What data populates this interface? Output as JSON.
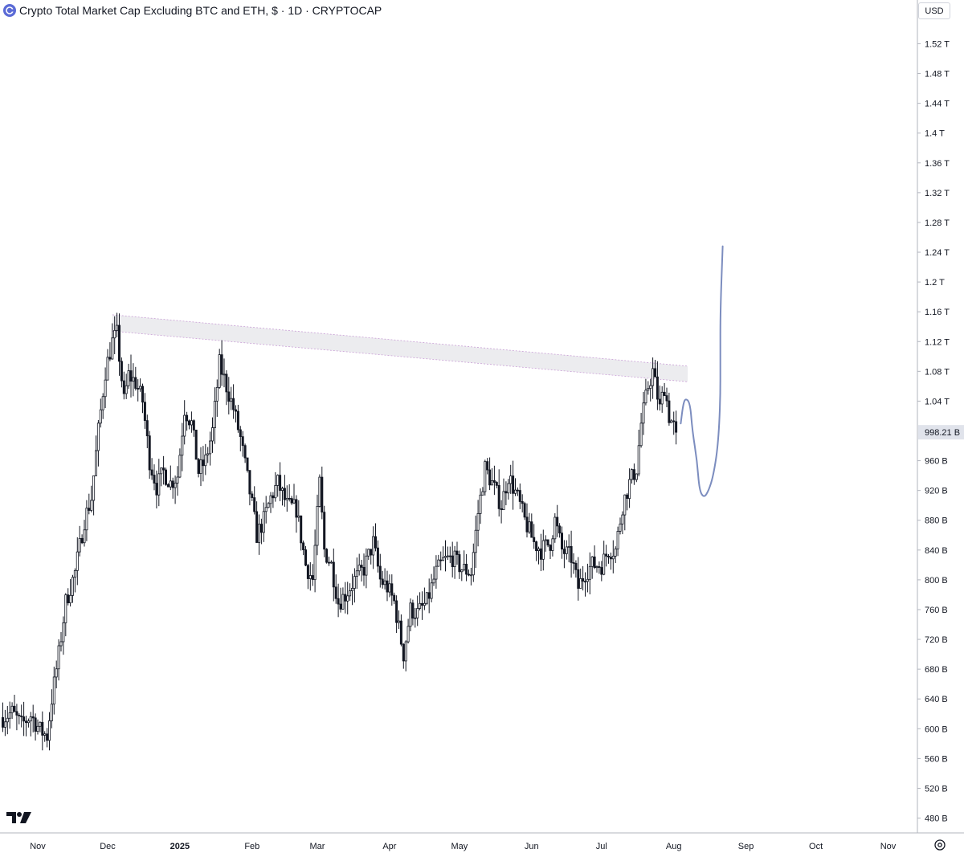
{
  "header": {
    "title": "Crypto Total Market Cap Excluding BTC and ETH, $ · 1D · CRYPTOCAP"
  },
  "currency_button": "USD",
  "icons": {
    "symbol": "crypto-symbol-icon",
    "logo": "tradingview-logo-icon",
    "settings": "settings-icon"
  },
  "colors": {
    "candle": "#131722",
    "resistance_fill": "#ececef",
    "resistance_edge": "#c9a0d6",
    "projection": "#7c8dbf",
    "price_label_bg": "#e0e3eb",
    "symbol_icon": "#5b6bd6"
  },
  "chart_data": {
    "type": "candlestick",
    "title": "Crypto Total Market Cap Excluding BTC and ETH, $ · 1D · CRYPTOCAP",
    "ylim": [
      470,
      1560
    ],
    "y_ticks": [
      {
        "label": "1.52 T",
        "value": 1520
      },
      {
        "label": "1.48 T",
        "value": 1480
      },
      {
        "label": "1.44 T",
        "value": 1440
      },
      {
        "label": "1.4 T",
        "value": 1400
      },
      {
        "label": "1.36 T",
        "value": 1360
      },
      {
        "label": "1.32 T",
        "value": 1320
      },
      {
        "label": "1.28 T",
        "value": 1280
      },
      {
        "label": "1.24 T",
        "value": 1240
      },
      {
        "label": "1.2 T",
        "value": 1200
      },
      {
        "label": "1.16 T",
        "value": 1160
      },
      {
        "label": "1.12 T",
        "value": 1120
      },
      {
        "label": "1.08 T",
        "value": 1080
      },
      {
        "label": "1.04 T",
        "value": 1040
      },
      {
        "label": "960 B",
        "value": 960
      },
      {
        "label": "920 B",
        "value": 920
      },
      {
        "label": "880 B",
        "value": 880
      },
      {
        "label": "840 B",
        "value": 840
      },
      {
        "label": "800 B",
        "value": 800
      },
      {
        "label": "760 B",
        "value": 760
      },
      {
        "label": "720 B",
        "value": 720
      },
      {
        "label": "680 B",
        "value": 680
      },
      {
        "label": "640 B",
        "value": 640
      },
      {
        "label": "600 B",
        "value": 600
      },
      {
        "label": "560 B",
        "value": 560
      },
      {
        "label": "520 B",
        "value": 520
      },
      {
        "label": "480 B",
        "value": 480
      }
    ],
    "x_ticks": [
      {
        "label": "Nov",
        "date": "2024-11-01"
      },
      {
        "label": "Dec",
        "date": "2024-12-01"
      },
      {
        "label": "2025",
        "date": "2025-01-01",
        "bold": true
      },
      {
        "label": "Feb",
        "date": "2025-02-01"
      },
      {
        "label": "Mar",
        "date": "2025-03-01"
      },
      {
        "label": "Apr",
        "date": "2025-04-01"
      },
      {
        "label": "May",
        "date": "2025-05-01"
      },
      {
        "label": "Jun",
        "date": "2025-06-01"
      },
      {
        "label": "Jul",
        "date": "2025-07-01"
      },
      {
        "label": "Aug",
        "date": "2025-08-01"
      },
      {
        "label": "Sep",
        "date": "2025-09-01"
      },
      {
        "label": "Oct",
        "date": "2025-10-01"
      },
      {
        "label": "Nov",
        "date": "2025-11-01"
      }
    ],
    "last_price": {
      "label": "998.21 B",
      "value": 998.21
    },
    "price_path": [
      [
        "2024-10-17",
        615
      ],
      [
        "2024-10-21",
        622
      ],
      [
        "2024-10-25",
        605
      ],
      [
        "2024-10-29",
        618
      ],
      [
        "2024-11-02",
        598
      ],
      [
        "2024-11-05",
        590
      ],
      [
        "2024-11-07",
        640
      ],
      [
        "2024-11-10",
        700
      ],
      [
        "2024-11-13",
        770
      ],
      [
        "2024-11-17",
        810
      ],
      [
        "2024-11-21",
        880
      ],
      [
        "2024-11-24",
        910
      ],
      [
        "2024-11-27",
        1000
      ],
      [
        "2024-11-30",
        1080
      ],
      [
        "2024-12-03",
        1120
      ],
      [
        "2024-12-05",
        1130
      ],
      [
        "2024-12-08",
        1040
      ],
      [
        "2024-12-10",
        1075
      ],
      [
        "2024-12-13",
        1065
      ],
      [
        "2024-12-16",
        1040
      ],
      [
        "2024-12-19",
        960
      ],
      [
        "2024-12-22",
        925
      ],
      [
        "2024-12-25",
        945
      ],
      [
        "2024-12-28",
        930
      ],
      [
        "2024-12-31",
        940
      ],
      [
        "2025-01-03",
        1030
      ],
      [
        "2025-01-06",
        1010
      ],
      [
        "2025-01-09",
        945
      ],
      [
        "2025-01-12",
        960
      ],
      [
        "2025-01-15",
        1000
      ],
      [
        "2025-01-18",
        1090
      ],
      [
        "2025-01-21",
        1060
      ],
      [
        "2025-01-24",
        1030
      ],
      [
        "2025-01-27",
        990
      ],
      [
        "2025-02-01",
        900
      ],
      [
        "2025-02-03",
        860
      ],
      [
        "2025-02-06",
        880
      ],
      [
        "2025-02-09",
        910
      ],
      [
        "2025-02-12",
        930
      ],
      [
        "2025-02-16",
        900
      ],
      [
        "2025-02-20",
        895
      ],
      [
        "2025-02-24",
        820
      ],
      [
        "2025-02-27",
        800
      ],
      [
        "2025-03-02",
        930
      ],
      [
        "2025-03-04",
        840
      ],
      [
        "2025-03-07",
        820
      ],
      [
        "2025-03-10",
        770
      ],
      [
        "2025-03-13",
        780
      ],
      [
        "2025-03-17",
        800
      ],
      [
        "2025-03-21",
        815
      ],
      [
        "2025-03-25",
        850
      ],
      [
        "2025-03-28",
        800
      ],
      [
        "2025-03-31",
        790
      ],
      [
        "2025-04-03",
        770
      ],
      [
        "2025-04-07",
        700
      ],
      [
        "2025-04-10",
        760
      ],
      [
        "2025-04-13",
        755
      ],
      [
        "2025-04-17",
        770
      ],
      [
        "2025-04-21",
        810
      ],
      [
        "2025-04-24",
        825
      ],
      [
        "2025-04-28",
        830
      ],
      [
        "2025-05-02",
        815
      ],
      [
        "2025-05-06",
        810
      ],
      [
        "2025-05-09",
        890
      ],
      [
        "2025-05-12",
        950
      ],
      [
        "2025-05-15",
        930
      ],
      [
        "2025-05-19",
        900
      ],
      [
        "2025-05-22",
        940
      ],
      [
        "2025-05-26",
        910
      ],
      [
        "2025-05-29",
        880
      ],
      [
        "2025-06-02",
        850
      ],
      [
        "2025-06-05",
        840
      ],
      [
        "2025-06-09",
        850
      ],
      [
        "2025-06-11",
        880
      ],
      [
        "2025-06-14",
        840
      ],
      [
        "2025-06-18",
        830
      ],
      [
        "2025-06-21",
        790
      ],
      [
        "2025-06-24",
        810
      ],
      [
        "2025-06-27",
        820
      ],
      [
        "2025-07-01",
        820
      ],
      [
        "2025-07-04",
        840
      ],
      [
        "2025-07-07",
        840
      ],
      [
        "2025-07-10",
        900
      ],
      [
        "2025-07-13",
        930
      ],
      [
        "2025-07-16",
        950
      ],
      [
        "2025-07-18",
        1010
      ],
      [
        "2025-07-21",
        1060
      ],
      [
        "2025-07-23",
        1080
      ],
      [
        "2025-07-26",
        1030
      ],
      [
        "2025-07-28",
        1060
      ],
      [
        "2025-07-30",
        1020
      ],
      [
        "2025-08-02",
        998.21
      ]
    ],
    "resistance_zone": {
      "start": {
        "date": "2024-12-03",
        "top": 1156,
        "bottom": 1134
      },
      "end": {
        "date": "2025-08-07",
        "top": 1087,
        "bottom": 1066
      }
    },
    "projection_path": [
      [
        "2025-08-04",
        1010
      ],
      [
        "2025-08-05",
        1035
      ],
      [
        "2025-08-06",
        1044
      ],
      [
        "2025-08-08",
        1038
      ],
      [
        "2025-08-09",
        1000
      ],
      [
        "2025-08-11",
        960
      ],
      [
        "2025-08-12",
        920
      ],
      [
        "2025-08-14",
        910
      ],
      [
        "2025-08-16",
        920
      ],
      [
        "2025-08-18",
        940
      ],
      [
        "2025-08-20",
        980
      ],
      [
        "2025-08-21",
        1040
      ],
      [
        "2025-08-21",
        1100
      ],
      [
        "2025-08-21",
        1160
      ],
      [
        "2025-08-22",
        1248
      ]
    ]
  }
}
